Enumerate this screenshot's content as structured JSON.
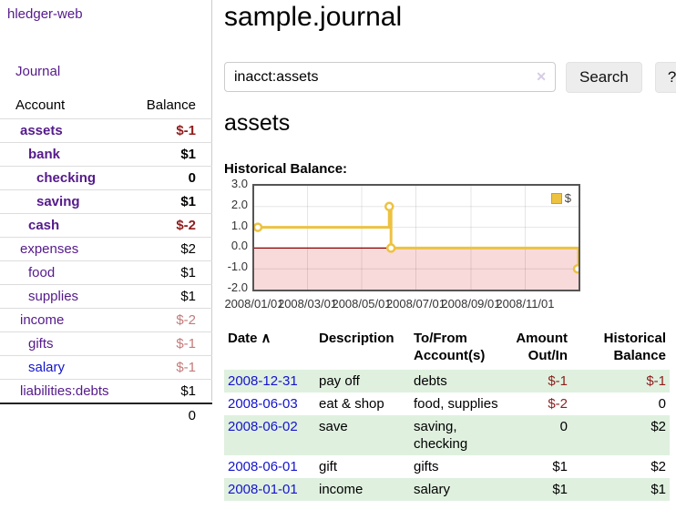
{
  "app": {
    "title": "hledger-web"
  },
  "sidebar": {
    "nav_journal": "Journal",
    "accounts": {
      "col_account": "Account",
      "col_balance": "Balance",
      "rows": [
        {
          "name": "assets",
          "depth": 1,
          "bold": true,
          "name_tone": "purple",
          "balance": "$-1",
          "balance_tone": "neg-strong"
        },
        {
          "name": "bank",
          "depth": 2,
          "bold": true,
          "name_tone": "purple",
          "balance": "$1",
          "balance_tone": "normal"
        },
        {
          "name": "checking",
          "depth": 3,
          "bold": true,
          "name_tone": "purple",
          "balance": "0",
          "balance_tone": "normal"
        },
        {
          "name": "saving",
          "depth": 3,
          "bold": true,
          "name_tone": "purple",
          "balance": "$1",
          "balance_tone": "normal"
        },
        {
          "name": "cash",
          "depth": 2,
          "bold": true,
          "name_tone": "purple",
          "balance": "$-2",
          "balance_tone": "neg-strong"
        },
        {
          "name": "expenses",
          "depth": 1,
          "bold": false,
          "name_tone": "purple",
          "balance": "$2",
          "balance_tone": "normal"
        },
        {
          "name": "food",
          "depth": 2,
          "bold": false,
          "name_tone": "purple",
          "balance": "$1",
          "balance_tone": "normal"
        },
        {
          "name": "supplies",
          "depth": 2,
          "bold": false,
          "name_tone": "purple",
          "balance": "$1",
          "balance_tone": "normal"
        },
        {
          "name": "income",
          "depth": 1,
          "bold": false,
          "name_tone": "purple",
          "balance": "$-2",
          "balance_tone": "neg-soft"
        },
        {
          "name": "gifts",
          "depth": 2,
          "bold": false,
          "name_tone": "purple",
          "balance": "$-1",
          "balance_tone": "neg-soft"
        },
        {
          "name": "salary",
          "depth": 2,
          "bold": false,
          "name_tone": "blue",
          "balance": "$-1",
          "balance_tone": "neg-soft"
        },
        {
          "name": "liabilities:debts",
          "depth": 1,
          "bold": false,
          "name_tone": "purple",
          "balance": "$1",
          "balance_tone": "normal"
        }
      ],
      "total": "0"
    }
  },
  "main": {
    "title": "sample.journal",
    "search": {
      "value": "inacct:assets",
      "clear_icon": "✕",
      "button": "Search",
      "help": "?"
    },
    "account_heading": "assets",
    "chart_title": "Historical Balance:"
  },
  "chart_data": {
    "type": "line",
    "step": true,
    "title": "Historical Balance:",
    "legend": {
      "label": "$",
      "position": "top-right",
      "swatch_color": "#edc240"
    },
    "grid": true,
    "xlim_days": [
      0,
      365
    ],
    "ylim": [
      -2,
      3
    ],
    "yticks": [
      "3.0",
      "2.0",
      "1.0",
      "0.0",
      "-1.0",
      "-2.0"
    ],
    "xticks": [
      {
        "label": "2008/01/01",
        "day": 0
      },
      {
        "label": "2008/03/01",
        "day": 60
      },
      {
        "label": "2008/05/01",
        "day": 121
      },
      {
        "label": "2008/07/01",
        "day": 182
      },
      {
        "label": "2008/09/01",
        "day": 244
      },
      {
        "label": "2008/11/01",
        "day": 305
      }
    ],
    "series": [
      {
        "name": "$",
        "color": "#edc240",
        "points": [
          {
            "date": "2008/01/01",
            "day": 0,
            "value": 1
          },
          {
            "date": "2008/06/01",
            "day": 152,
            "value": 2
          },
          {
            "date": "2008/06/03",
            "day": 154,
            "value": 0
          },
          {
            "date": "2008/12/31",
            "day": 365,
            "value": -1
          }
        ]
      }
    ],
    "negative_fill": "#f9dada",
    "zero_line_color": "#8b0000"
  },
  "transactions": {
    "headers": [
      "Date",
      "Description",
      "To/From Account(s)",
      "Amount Out/In",
      "Historical Balance"
    ],
    "sort_indicator": "∧",
    "rows": [
      {
        "date": "2008-12-31",
        "description": "pay off",
        "accounts": "debts",
        "amount": "$-1",
        "amount_tone": "neg",
        "balance": "$-1",
        "balance_tone": "neg",
        "shaded": true
      },
      {
        "date": "2008-06-03",
        "description": "eat & shop",
        "accounts": "food, supplies",
        "amount": "$-2",
        "amount_tone": "neg",
        "balance": "0",
        "balance_tone": "normal",
        "shaded": false
      },
      {
        "date": "2008-06-02",
        "description": "save",
        "accounts": "saving, checking",
        "amount": "0",
        "amount_tone": "normal",
        "balance": "$2",
        "balance_tone": "normal",
        "shaded": true
      },
      {
        "date": "2008-06-01",
        "description": "gift",
        "accounts": "gifts",
        "amount": "$1",
        "amount_tone": "normal",
        "balance": "$2",
        "balance_tone": "normal",
        "shaded": false
      },
      {
        "date": "2008-01-01",
        "description": "income",
        "accounts": "salary",
        "amount": "$1",
        "amount_tone": "normal",
        "balance": "$1",
        "balance_tone": "normal",
        "shaded": true
      }
    ]
  },
  "colors": {
    "link_purple": "#551a8b",
    "link_blue": "#1414cc",
    "negative_strong": "#8f1d1d",
    "negative_soft": "#c47a7a",
    "row_green": "#dff0df",
    "series_gold": "#edc240"
  }
}
